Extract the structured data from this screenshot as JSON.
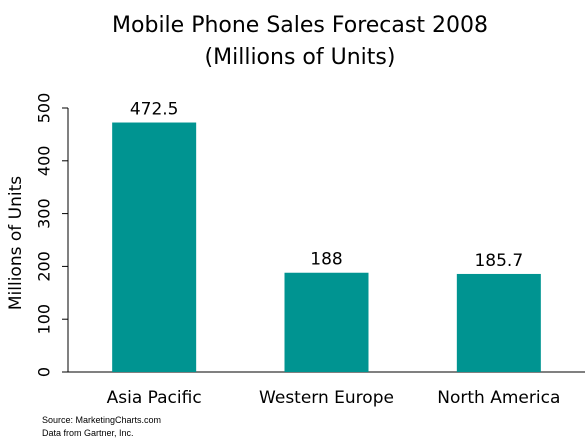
{
  "chart_data": {
    "type": "bar",
    "title": [
      "Mobile Phone Sales Forecast 2008",
      "(Millions of Units)"
    ],
    "ylabel": "Millions of Units",
    "categories": [
      "Asia Pacific",
      "Western Europe",
      "North America"
    ],
    "values": [
      472.5,
      188,
      185.7
    ],
    "data_labels": [
      "472.5",
      "188",
      "185.7"
    ],
    "ylim": [
      0,
      500
    ],
    "yticks": [
      0,
      100,
      200,
      300,
      400,
      500
    ],
    "bar_color": "#009491",
    "grid": false,
    "legend": "none"
  },
  "source": {
    "line1": "Source: MarketingCharts.com",
    "line2": "Data from Gartner, Inc."
  }
}
